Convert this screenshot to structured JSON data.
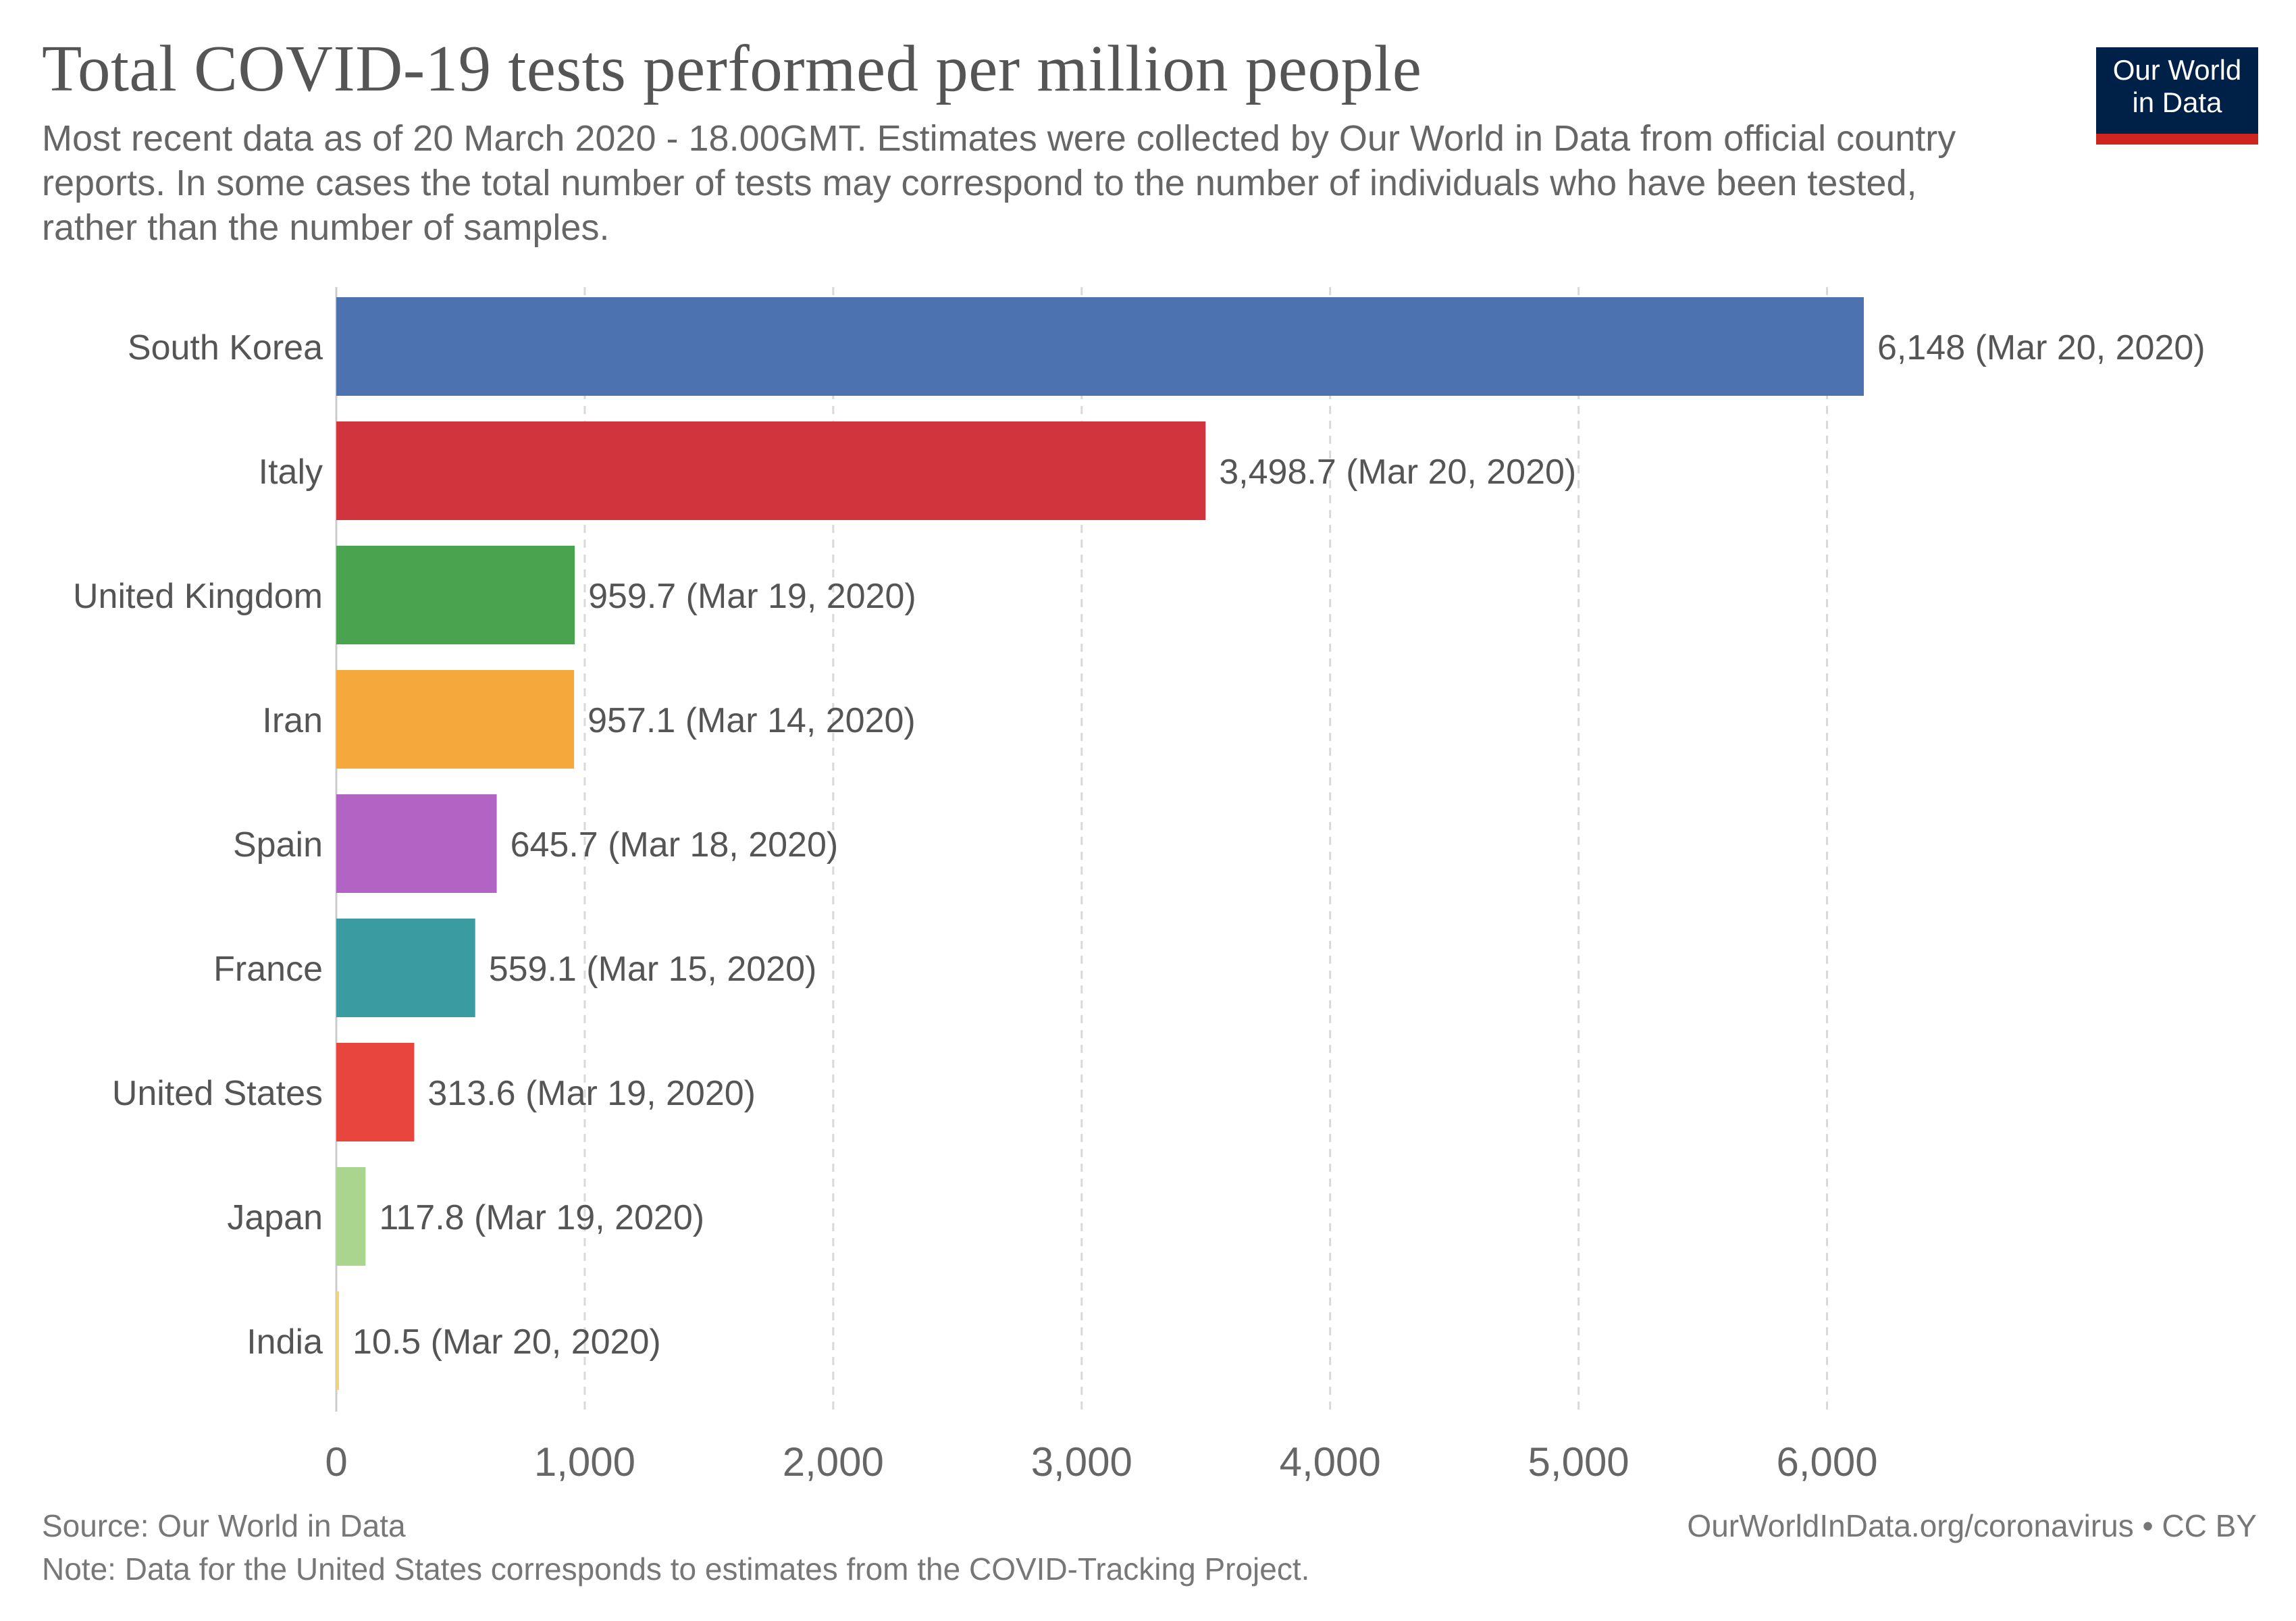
{
  "header": {
    "title": "Total COVID-19 tests performed per million people",
    "subtitle": "Most recent data as of 20 March 2020 - 18.00GMT. Estimates were collected by Our World in Data from official country reports. In some cases the total number of tests may correspond to the number of individuals who have been tested, rather than the number of samples."
  },
  "logo": {
    "line1": "Our World",
    "line2": "in Data",
    "bg_color": "#002147",
    "accent_color": "#ce261e"
  },
  "chart_data": {
    "type": "bar",
    "orientation": "horizontal",
    "categories": [
      "South Korea",
      "Italy",
      "United Kingdom",
      "Iran",
      "Spain",
      "France",
      "United States",
      "Japan",
      "India"
    ],
    "values": [
      6148,
      3498.7,
      959.7,
      957.1,
      645.7,
      559.1,
      313.6,
      117.8,
      10.5
    ],
    "value_labels": [
      "6,148 (Mar 20, 2020)",
      "3,498.7 (Mar 20, 2020)",
      "959.7 (Mar 19, 2020)",
      "957.1 (Mar 14, 2020)",
      "645.7 (Mar 18, 2020)",
      "559.1 (Mar 15, 2020)",
      "313.6 (Mar 19, 2020)",
      "117.8 (Mar 19, 2020)",
      "10.5 (Mar 20, 2020)"
    ],
    "colors": [
      "#4c72b0",
      "#d1343c",
      "#49a34f",
      "#f5a93b",
      "#b264c4",
      "#3a9ca1",
      "#e8453f",
      "#a9d58e",
      "#f0d57a"
    ],
    "xlim": [
      0,
      6148
    ],
    "xticks": [
      0,
      1000,
      2000,
      3000,
      4000,
      5000,
      6000
    ],
    "xtick_labels": [
      "0",
      "1,000",
      "2,000",
      "3,000",
      "4,000",
      "5,000",
      "6,000"
    ],
    "grid": "vertical dashed",
    "title": "Total COVID-19 tests performed per million people",
    "xlabel": "",
    "ylabel": ""
  },
  "footer": {
    "source": "Source: Our World in Data",
    "note": "Note: Data for the United States corresponds to estimates from the COVID-Tracking Project.",
    "url": "OurWorldInData.org/coronavirus • CC BY"
  }
}
